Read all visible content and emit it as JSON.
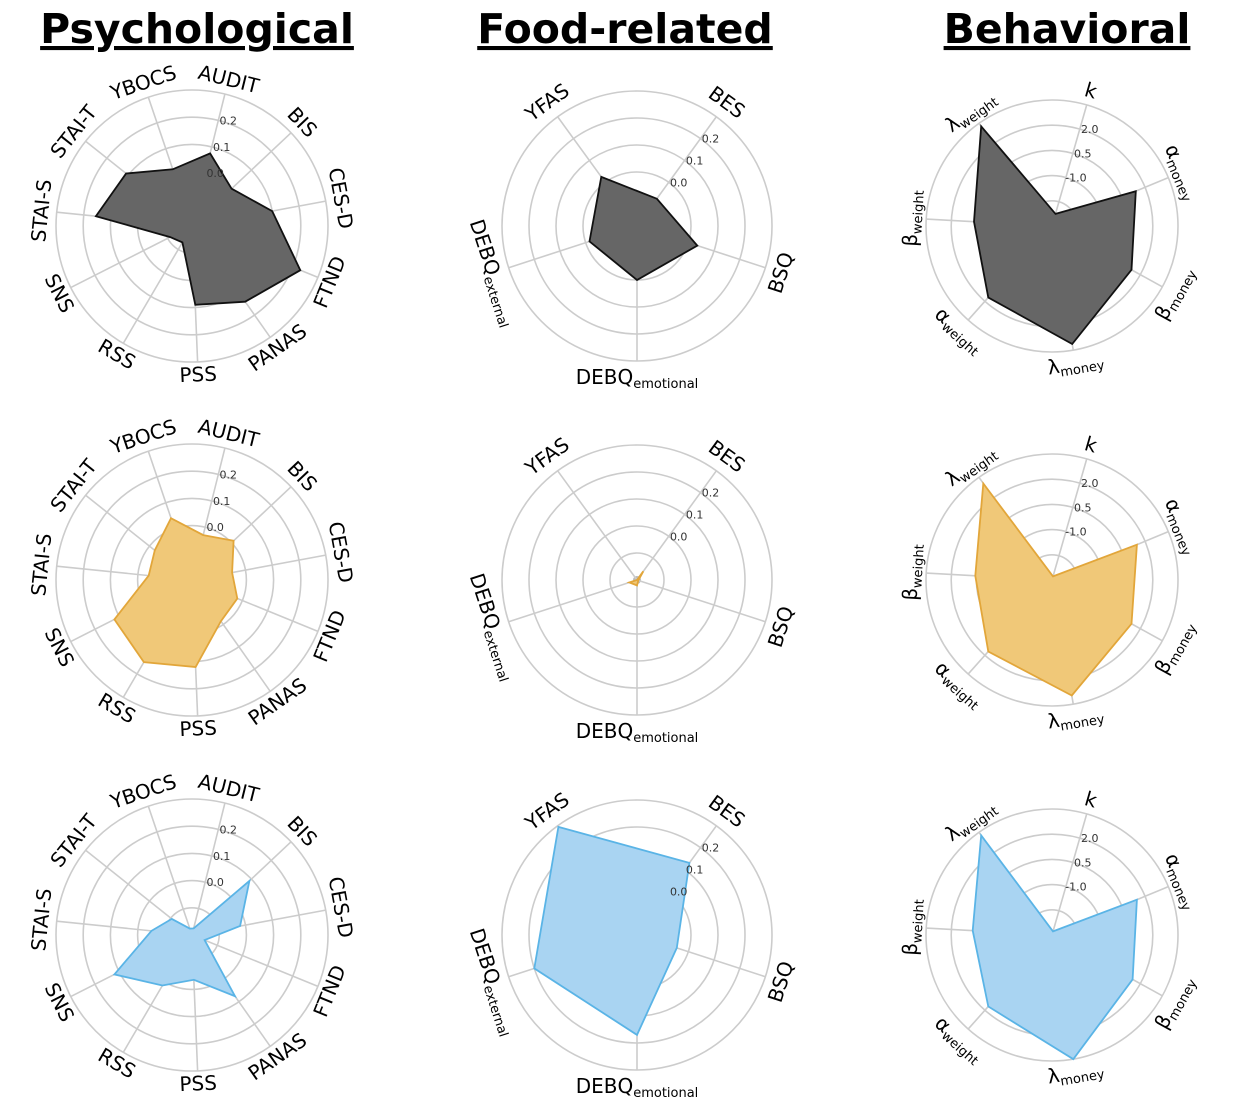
{
  "columns": [
    "Psychological",
    "Food-related",
    "Behavioral"
  ],
  "colors": {
    "gray": "#666666",
    "orange": "#f0c878",
    "blue": "#a9d4f2",
    "gray_edge": "#111111",
    "orange_edge": "#e2a63a",
    "blue_edge": "#5ab4e6",
    "grid": "#cccccc"
  },
  "chart_data": [
    {
      "type": "radar",
      "panel": "Psychological",
      "row": 1,
      "color": "gray",
      "axes": [
        "AUDIT",
        "BIS",
        "CES-D",
        "FTND",
        "PANAS",
        "PSS",
        "RSS",
        "SNS",
        "STAI-S",
        "STAI-T",
        "YBOCS"
      ],
      "ticks": [
        "0.0",
        "0.1",
        "0.2"
      ],
      "values": [
        0.55,
        0.4,
        0.6,
        0.86,
        0.68,
        0.58,
        0.14,
        0.18,
        0.71,
        0.62,
        0.44
      ]
    },
    {
      "type": "radar",
      "panel": "Food-related",
      "row": 1,
      "color": "gray",
      "axes": [
        "BES",
        "BSQ",
        "DEBQ_emotional",
        "DEBQ_external",
        "YFAS"
      ],
      "axis_labels": [
        {
          "main": "BES"
        },
        {
          "main": "BSQ"
        },
        {
          "main": "DEBQ",
          "sub": "emotional"
        },
        {
          "main": "DEBQ",
          "sub": "external"
        },
        {
          "main": "YFAS"
        }
      ],
      "ticks": [
        "0.0",
        "0.1",
        "0.2"
      ],
      "values": [
        0.25,
        0.47,
        0.4,
        0.37,
        0.45
      ]
    },
    {
      "type": "radar",
      "panel": "Behavioral",
      "row": 1,
      "color": "gray",
      "axes": [
        "k",
        "α_money",
        "β_money",
        "λ_money",
        "α_weight",
        "β_weight",
        "λ_weight"
      ],
      "axis_labels": [
        {
          "main": "k"
        },
        {
          "main": "α",
          "sub": "money"
        },
        {
          "main": "β",
          "sub": "money"
        },
        {
          "main": "λ",
          "sub": "money"
        },
        {
          "main": "α",
          "sub": "weight"
        },
        {
          "main": "β",
          "sub": "weight"
        },
        {
          "main": "λ",
          "sub": "weight"
        }
      ],
      "ticks": [
        "-1.0",
        "0.5",
        "2.0"
      ],
      "values": [
        0.1,
        0.72,
        0.72,
        0.95,
        0.76,
        0.62,
        0.97
      ]
    },
    {
      "type": "radar",
      "panel": "Psychological",
      "row": 2,
      "color": "orange",
      "axes": [
        "AUDIT",
        "BIS",
        "CES-D",
        "FTND",
        "PANAS",
        "PSS",
        "RSS",
        "SNS",
        "STAI-S",
        "STAI-T",
        "YBOCS"
      ],
      "ticks": [
        "0.0",
        "0.1",
        "0.2"
      ],
      "values": [
        0.34,
        0.42,
        0.3,
        0.36,
        0.37,
        0.64,
        0.7,
        0.64,
        0.32,
        0.35,
        0.48
      ]
    },
    {
      "type": "radar",
      "panel": "Food-related",
      "row": 2,
      "color": "orange",
      "axes": [
        "BES",
        "BSQ",
        "DEBQ_emotional",
        "DEBQ_external",
        "YFAS"
      ],
      "axis_labels": [
        {
          "main": "BES"
        },
        {
          "main": "BSQ"
        },
        {
          "main": "DEBQ",
          "sub": "emotional"
        },
        {
          "main": "DEBQ",
          "sub": "external"
        },
        {
          "main": "YFAS"
        }
      ],
      "ticks": [
        "0.0",
        "0.1",
        "0.2"
      ],
      "values": [
        0.08,
        0.01,
        0.04,
        0.06,
        0.0
      ]
    },
    {
      "type": "radar",
      "panel": "Behavioral",
      "row": 2,
      "color": "orange",
      "axes": [
        "k",
        "α_money",
        "β_money",
        "λ_money",
        "α_weight",
        "β_weight",
        "λ_weight"
      ],
      "axis_labels": [
        {
          "main": "k"
        },
        {
          "main": "α",
          "sub": "money"
        },
        {
          "main": "β",
          "sub": "money"
        },
        {
          "main": "λ",
          "sub": "money"
        },
        {
          "main": "α",
          "sub": "weight"
        },
        {
          "main": "β",
          "sub": "weight"
        },
        {
          "main": "λ",
          "sub": "weight"
        }
      ],
      "ticks": [
        "-1.0",
        "0.5",
        "2.0"
      ],
      "values": [
        0.03,
        0.73,
        0.72,
        0.93,
        0.76,
        0.61,
        0.94
      ]
    },
    {
      "type": "radar",
      "panel": "Psychological",
      "row": 3,
      "color": "blue",
      "axes": [
        "AUDIT",
        "BIS",
        "CES-D",
        "FTND",
        "PANAS",
        "PSS",
        "RSS",
        "SNS",
        "STAI-S",
        "STAI-T",
        "YBOCS"
      ],
      "ticks": [
        "0.0",
        "0.1",
        "0.2"
      ],
      "values": [
        0.05,
        0.58,
        0.36,
        0.1,
        0.55,
        0.33,
        0.43,
        0.64,
        0.3,
        0.19,
        0.05
      ]
    },
    {
      "type": "radar",
      "panel": "Food-related",
      "row": 3,
      "color": "blue",
      "axes": [
        "BES",
        "BSQ",
        "DEBQ_emotional",
        "DEBQ_external",
        "YFAS"
      ],
      "axis_labels": [
        {
          "main": "BES"
        },
        {
          "main": "BSQ"
        },
        {
          "main": "DEBQ",
          "sub": "emotional"
        },
        {
          "main": "DEBQ",
          "sub": "external"
        },
        {
          "main": "YFAS"
        }
      ],
      "ticks": [
        "0.0",
        "0.1",
        "0.2"
      ],
      "values": [
        0.66,
        0.31,
        0.74,
        0.8,
        0.99
      ]
    },
    {
      "type": "radar",
      "panel": "Behavioral",
      "row": 3,
      "color": "blue",
      "axes": [
        "k",
        "α_money",
        "β_money",
        "λ_money",
        "α_weight",
        "β_weight",
        "λ_weight"
      ],
      "axis_labels": [
        {
          "main": "k"
        },
        {
          "main": "α",
          "sub": "money"
        },
        {
          "main": "β",
          "sub": "money"
        },
        {
          "main": "λ",
          "sub": "money"
        },
        {
          "main": "α",
          "sub": "weight"
        },
        {
          "main": "β",
          "sub": "weight"
        },
        {
          "main": "λ",
          "sub": "weight"
        }
      ],
      "ticks": [
        "-1.0",
        "0.5",
        "2.0"
      ],
      "values": [
        0.03,
        0.73,
        0.73,
        1.0,
        0.76,
        0.63,
        0.97
      ]
    }
  ]
}
